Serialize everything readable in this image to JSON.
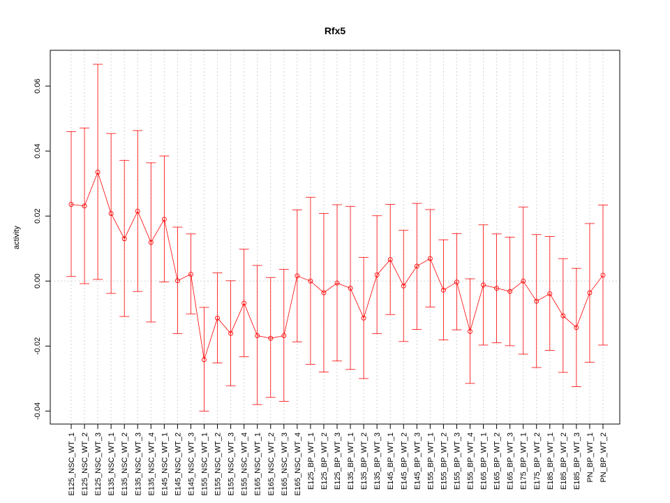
{
  "chart_data": {
    "type": "line",
    "title": "Rfx5",
    "xlabel": "",
    "ylabel": "activity",
    "ylim": [
      -0.044,
      0.071
    ],
    "yticks": [
      "-0.04",
      "-0.02",
      "0.00",
      "0.02",
      "0.04",
      "0.06"
    ],
    "grid": "vertical dotted lines at each category, horizontal dotted line at 0",
    "color": "#ff0000",
    "categories": [
      "E125_NSC_WT_1",
      "E125_NSC_WT_2",
      "E125_NSC_WT_3",
      "E135_NSC_WT_1",
      "E135_NSC_WT_2",
      "E135_NSC_WT_3",
      "E135_NSC_WT_4",
      "E145_NSC_WT_1",
      "E145_NSC_WT_2",
      "E145_NSC_WT_3",
      "E155_NSC_WT_1",
      "E155_NSC_WT_2",
      "E155_NSC_WT_3",
      "E155_NSC_WT_4",
      "E165_NSC_WT_1",
      "E165_NSC_WT_2",
      "E165_NSC_WT_3",
      "E165_NSC_WT_4",
      "E125_BP_WT_1",
      "E125_BP_WT_2",
      "E125_BP_WT_3",
      "E135_BP_WT_1",
      "E135_BP_WT_2",
      "E135_BP_WT_3",
      "E145_BP_WT_1",
      "E145_BP_WT_2",
      "E145_BP_WT_3",
      "E155_BP_WT_1",
      "E155_BP_WT_2",
      "E155_BP_WT_3",
      "E155_BP_WT_4",
      "E165_BP_WT_1",
      "E165_BP_WT_2",
      "E165_BP_WT_3",
      "E175_BP_WT_1",
      "E175_BP_WT_2",
      "E185_BP_WT_1",
      "E185_BP_WT_2",
      "E185_BP_WT_3",
      "PN_BP_WT_1",
      "PN_BP_WT_2"
    ],
    "values": [
      0.0236,
      0.0231,
      0.0335,
      0.0208,
      0.013,
      0.0215,
      0.0119,
      0.019,
      0.0001,
      0.0021,
      -0.0242,
      -0.0114,
      -0.0161,
      -0.0068,
      -0.0168,
      -0.0176,
      -0.0168,
      0.0016,
      0.0,
      -0.0036,
      -0.0006,
      -0.0022,
      -0.0114,
      0.0019,
      0.0066,
      -0.0015,
      0.0046,
      0.0069,
      -0.0028,
      -0.0003,
      -0.0155,
      -0.0012,
      -0.0022,
      -0.0032,
      0.0,
      -0.0062,
      -0.0039,
      -0.0107,
      -0.0143,
      -0.0036,
      0.0018
    ],
    "upper": [
      0.046,
      0.0471,
      0.0667,
      0.0454,
      0.0371,
      0.0463,
      0.0364,
      0.0385,
      0.0166,
      0.0145,
      -0.0081,
      0.0025,
      0.0001,
      0.0098,
      0.0048,
      0.0011,
      0.0036,
      0.0219,
      0.0258,
      0.0208,
      0.0235,
      0.023,
      0.0073,
      0.0201,
      0.0236,
      0.0156,
      0.0239,
      0.022,
      0.0127,
      0.0146,
      0.0007,
      0.0173,
      0.0145,
      0.0135,
      0.0228,
      0.0143,
      0.0137,
      0.0069,
      0.0039,
      0.0177,
      0.0234
    ],
    "lower": [
      0.0014,
      -0.0008,
      0.0005,
      -0.0038,
      -0.0109,
      -0.0032,
      -0.0126,
      -0.0003,
      -0.0162,
      -0.0101,
      -0.04,
      -0.0252,
      -0.0322,
      -0.0233,
      -0.038,
      -0.0358,
      -0.037,
      -0.0187,
      -0.0256,
      -0.028,
      -0.0246,
      -0.0272,
      -0.03,
      -0.0162,
      -0.0103,
      -0.0186,
      -0.0149,
      -0.008,
      -0.0181,
      -0.015,
      -0.0315,
      -0.0197,
      -0.019,
      -0.0199,
      -0.0225,
      -0.0266,
      -0.0213,
      -0.0281,
      -0.0325,
      -0.025,
      -0.0197
    ]
  }
}
